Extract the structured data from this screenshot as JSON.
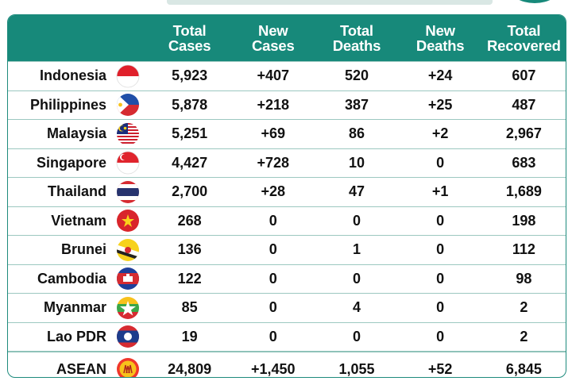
{
  "chart_data": {
    "type": "table",
    "columns": [
      "Total Cases",
      "New Cases",
      "Total Deaths",
      "New Deaths",
      "Total Recovered"
    ],
    "rows": [
      {
        "country": "Indonesia",
        "flag": "indonesia-flag",
        "values": [
          "5,923",
          "+407",
          "520",
          "+24",
          "607"
        ]
      },
      {
        "country": "Philippines",
        "flag": "philippines-flag",
        "values": [
          "5,878",
          "+218",
          "387",
          "+25",
          "487"
        ]
      },
      {
        "country": "Malaysia",
        "flag": "malaysia-flag",
        "values": [
          "5,251",
          "+69",
          "86",
          "+2",
          "2,967"
        ]
      },
      {
        "country": "Singapore",
        "flag": "singapore-flag",
        "values": [
          "4,427",
          "+728",
          "10",
          "0",
          "683"
        ]
      },
      {
        "country": "Thailand",
        "flag": "thailand-flag",
        "values": [
          "2,700",
          "+28",
          "47",
          "+1",
          "1,689"
        ]
      },
      {
        "country": "Vietnam",
        "flag": "vietnam-flag",
        "values": [
          "268",
          "0",
          "0",
          "0",
          "198"
        ]
      },
      {
        "country": "Brunei",
        "flag": "brunei-flag",
        "values": [
          "136",
          "0",
          "1",
          "0",
          "112"
        ]
      },
      {
        "country": "Cambodia",
        "flag": "cambodia-flag",
        "values": [
          "122",
          "0",
          "0",
          "0",
          "98"
        ]
      },
      {
        "country": "Myanmar",
        "flag": "myanmar-flag",
        "values": [
          "85",
          "0",
          "4",
          "0",
          "2"
        ]
      },
      {
        "country": "Lao PDR",
        "flag": "laos-flag",
        "values": [
          "19",
          "0",
          "0",
          "0",
          "2"
        ]
      }
    ],
    "total_row": {
      "country": "ASEAN",
      "flag": "asean-emblem",
      "values": [
        "24,809",
        "+1,450",
        "1,055",
        "+52",
        "6,845"
      ]
    }
  },
  "colors": {
    "header": "#17897a",
    "border": "#1e8b7d",
    "row_line": "#9cc8c0"
  }
}
